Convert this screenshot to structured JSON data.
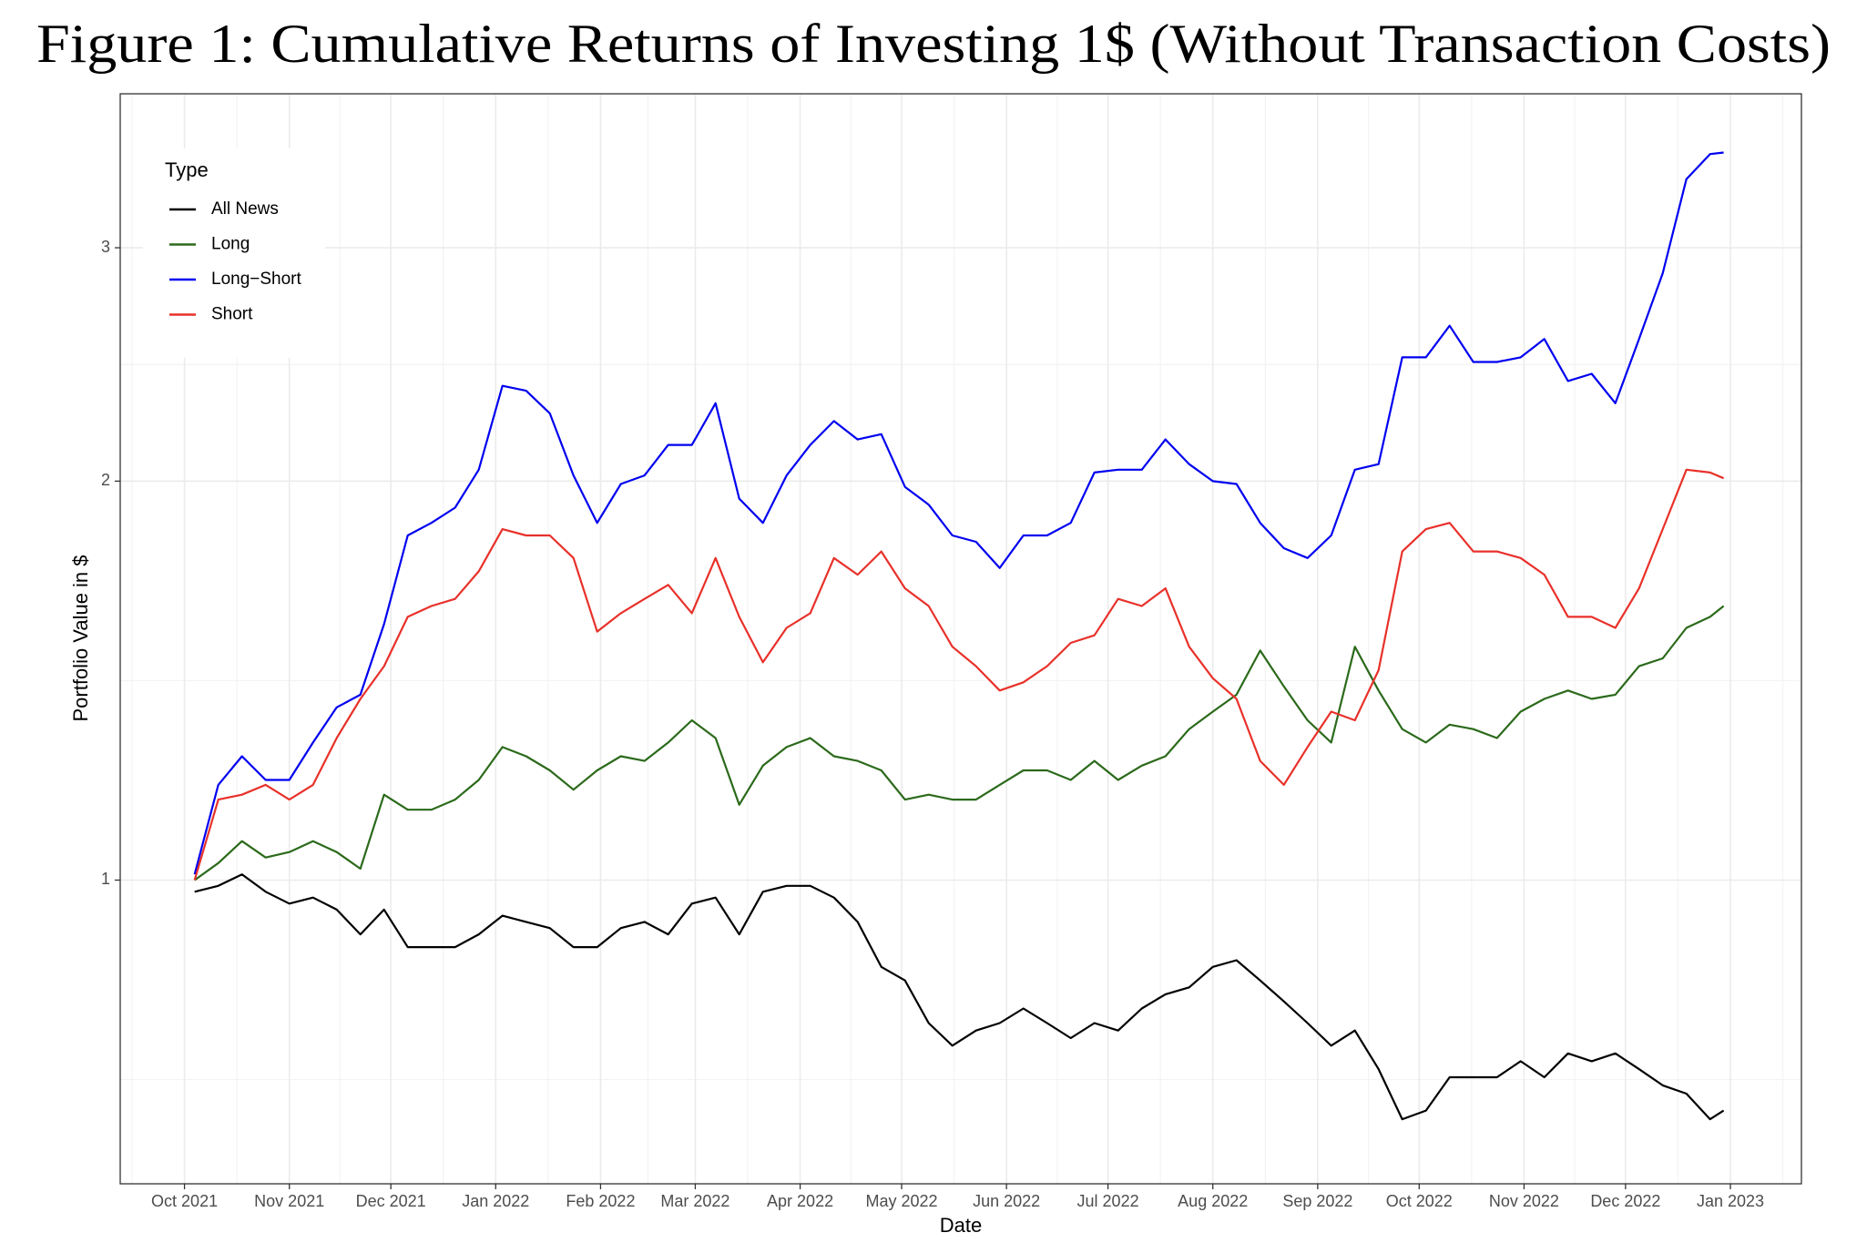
{
  "chart_data": {
    "type": "line",
    "title": "Figure 1: Cumulative Returns of Investing 1$ (Without Transaction Costs)",
    "x_label": "Date",
    "y_label": "Portfolio Value in $",
    "legend_title": "Type",
    "legend": "top-left",
    "grid": true,
    "log_y": true,
    "x": [
      3,
      10,
      17,
      24,
      31,
      38,
      45,
      52,
      59,
      66,
      73,
      80,
      87,
      94,
      101,
      108,
      115,
      122,
      129,
      136,
      143,
      150,
      157,
      164,
      171,
      178,
      185,
      192,
      199,
      206,
      213,
      220,
      227,
      234,
      241,
      248,
      255,
      262,
      269,
      276,
      283,
      290,
      297,
      304,
      311,
      318,
      325,
      332,
      339,
      346,
      353,
      360,
      367,
      374,
      381,
      388,
      395,
      402,
      409,
      416,
      423,
      430,
      437,
      444,
      451,
      455
    ],
    "xlim": [
      -19,
      478
    ],
    "xticks": [
      {
        "value": 0,
        "label": "Oct 2021"
      },
      {
        "value": 31,
        "label": "Nov 2021"
      },
      {
        "value": 61,
        "label": "Dec 2021"
      },
      {
        "value": 92,
        "label": "Jan 2022"
      },
      {
        "value": 123,
        "label": "Feb 2022"
      },
      {
        "value": 151,
        "label": "Mar 2022"
      },
      {
        "value": 182,
        "label": "Apr 2022"
      },
      {
        "value": 212,
        "label": "May 2022"
      },
      {
        "value": 243,
        "label": "Jun 2022"
      },
      {
        "value": 273,
        "label": "Jul 2022"
      },
      {
        "value": 304,
        "label": "Aug 2022"
      },
      {
        "value": 335,
        "label": "Sep 2022"
      },
      {
        "value": 365,
        "label": "Oct 2022"
      },
      {
        "value": 396,
        "label": "Nov 2022"
      },
      {
        "value": 426,
        "label": "Dec 2022"
      },
      {
        "value": 457,
        "label": "Jan 2023"
      }
    ],
    "ylim": [
      0.59,
      3.92
    ],
    "yticks": [
      1,
      2,
      3
    ],
    "series": [
      {
        "name": "All News",
        "color": "#000000",
        "values": [
          0.98,
          0.99,
          1.01,
          0.98,
          0.96,
          0.97,
          0.95,
          0.91,
          0.95,
          0.89,
          0.89,
          0.89,
          0.91,
          0.94,
          0.93,
          0.92,
          0.89,
          0.89,
          0.92,
          0.93,
          0.91,
          0.96,
          0.97,
          0.91,
          0.98,
          0.99,
          0.99,
          0.97,
          0.93,
          0.86,
          0.84,
          0.78,
          0.75,
          0.77,
          0.78,
          0.8,
          0.78,
          0.76,
          0.78,
          0.77,
          0.8,
          0.82,
          0.83,
          0.86,
          0.87,
          0.84,
          0.81,
          0.78,
          0.75,
          0.77,
          0.72,
          0.66,
          0.67,
          0.71,
          0.71,
          0.71,
          0.73,
          0.71,
          0.74,
          0.73,
          0.74,
          0.72,
          0.7,
          0.69,
          0.66,
          0.67
        ]
      },
      {
        "name": "Long",
        "color": "#2b6a1b",
        "values": [
          1.0,
          1.03,
          1.07,
          1.04,
          1.05,
          1.07,
          1.05,
          1.02,
          1.16,
          1.13,
          1.13,
          1.15,
          1.19,
          1.26,
          1.24,
          1.21,
          1.17,
          1.21,
          1.24,
          1.23,
          1.27,
          1.32,
          1.28,
          1.14,
          1.22,
          1.26,
          1.28,
          1.24,
          1.23,
          1.21,
          1.15,
          1.16,
          1.15,
          1.15,
          1.18,
          1.21,
          1.21,
          1.19,
          1.23,
          1.19,
          1.22,
          1.24,
          1.3,
          1.34,
          1.38,
          1.49,
          1.4,
          1.32,
          1.27,
          1.5,
          1.39,
          1.3,
          1.27,
          1.31,
          1.3,
          1.28,
          1.34,
          1.37,
          1.39,
          1.37,
          1.38,
          1.45,
          1.47,
          1.55,
          1.58,
          1.61
        ]
      },
      {
        "name": "Long−Short",
        "color": "#0000f0",
        "values": [
          1.01,
          1.18,
          1.24,
          1.19,
          1.19,
          1.27,
          1.35,
          1.38,
          1.56,
          1.82,
          1.86,
          1.91,
          2.04,
          2.36,
          2.34,
          2.25,
          2.02,
          1.86,
          1.99,
          2.02,
          2.13,
          2.13,
          2.29,
          1.94,
          1.86,
          2.02,
          2.13,
          2.22,
          2.15,
          2.17,
          1.98,
          1.92,
          1.82,
          1.8,
          1.72,
          1.82,
          1.82,
          1.86,
          2.03,
          2.04,
          2.04,
          2.15,
          2.06,
          2.0,
          1.99,
          1.86,
          1.78,
          1.75,
          1.82,
          2.04,
          2.06,
          2.48,
          2.48,
          2.62,
          2.46,
          2.46,
          2.48,
          2.56,
          2.38,
          2.41,
          2.29,
          2.56,
          2.87,
          3.38,
          3.53,
          3.54
        ]
      },
      {
        "name": "Short",
        "color": "#e8312a",
        "values": [
          1.0,
          1.15,
          1.16,
          1.18,
          1.15,
          1.18,
          1.28,
          1.37,
          1.45,
          1.58,
          1.61,
          1.63,
          1.71,
          1.84,
          1.82,
          1.82,
          1.75,
          1.54,
          1.59,
          1.63,
          1.67,
          1.59,
          1.75,
          1.58,
          1.46,
          1.55,
          1.59,
          1.75,
          1.7,
          1.77,
          1.66,
          1.61,
          1.5,
          1.45,
          1.39,
          1.41,
          1.45,
          1.51,
          1.53,
          1.63,
          1.61,
          1.66,
          1.5,
          1.42,
          1.37,
          1.23,
          1.18,
          1.26,
          1.34,
          1.32,
          1.44,
          1.77,
          1.84,
          1.86,
          1.77,
          1.77,
          1.75,
          1.7,
          1.58,
          1.58,
          1.55,
          1.66,
          1.84,
          2.04,
          2.03,
          2.01
        ]
      }
    ]
  }
}
